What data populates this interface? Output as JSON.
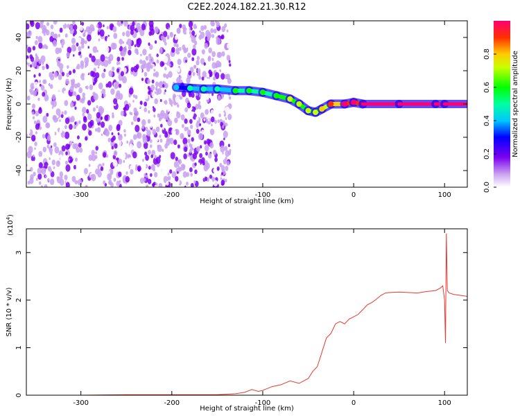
{
  "title": "C2E2.2024.182.21.30.R12",
  "spectrogram": {
    "type": "heatmap",
    "xlabel": "Height of straight line (km)",
    "ylabel": "Frequency (Hz)",
    "xlim": [
      -360,
      125
    ],
    "ylim": [
      -50,
      50
    ],
    "x_ticks": [
      -300,
      -200,
      -100,
      0,
      100
    ],
    "y_ticks": [
      -40,
      -20,
      0,
      20,
      40
    ],
    "colorbar": {
      "label": "Normalized spectral amplitude",
      "range": [
        0.0,
        1.0
      ],
      "ticks": [
        "0.0",
        "0.2",
        "0.4",
        "0.6",
        "0.8"
      ],
      "tick_values": [
        0.0,
        0.2,
        0.4,
        0.6,
        0.8
      ]
    },
    "signal_track": [
      {
        "x": -195,
        "y": 10,
        "amp": 0.35
      },
      {
        "x": -180,
        "y": 9.5,
        "amp": 0.4
      },
      {
        "x": -165,
        "y": 9,
        "amp": 0.45
      },
      {
        "x": -150,
        "y": 9,
        "amp": 0.45
      },
      {
        "x": -130,
        "y": 8,
        "amp": 0.5
      },
      {
        "x": -115,
        "y": 8,
        "amp": 0.55
      },
      {
        "x": -100,
        "y": 7,
        "amp": 0.55
      },
      {
        "x": -85,
        "y": 5,
        "amp": 0.6
      },
      {
        "x": -70,
        "y": 3,
        "amp": 0.65
      },
      {
        "x": -60,
        "y": 0,
        "amp": 0.65
      },
      {
        "x": -50,
        "y": -4,
        "amp": 0.7
      },
      {
        "x": -42,
        "y": -5,
        "amp": 0.7
      },
      {
        "x": -35,
        "y": -3,
        "amp": 0.75
      },
      {
        "x": -25,
        "y": 0,
        "amp": 0.85
      },
      {
        "x": -10,
        "y": 0,
        "amp": 0.9
      },
      {
        "x": 0,
        "y": 1,
        "amp": 0.9
      },
      {
        "x": 10,
        "y": 0,
        "amp": 1.0
      },
      {
        "x": 50,
        "y": 0,
        "amp": 1.0
      },
      {
        "x": 90,
        "y": 0,
        "amp": 1.0
      },
      {
        "x": 100,
        "y": 0,
        "amp": 1.0
      },
      {
        "x": 125,
        "y": 0,
        "amp": 1.0
      }
    ]
  },
  "snr": {
    "type": "line",
    "xlabel": "Height of straight line (km)",
    "ylabel": "SNR (10 * v/v)",
    "y_multiplier": "(x10",
    "y_multiplier_exp": "4",
    "y_multiplier_close": ")",
    "xlim": [
      -360,
      125
    ],
    "ylim": [
      0,
      3.5
    ],
    "x_ticks": [
      -300,
      -200,
      -100,
      0,
      100
    ],
    "y_ticks": [
      0,
      1,
      2,
      3
    ],
    "color": "#e8382e",
    "series_x": [
      -360,
      -300,
      -250,
      -200,
      -150,
      -130,
      -120,
      -112,
      -105,
      -100,
      -90,
      -80,
      -70,
      -60,
      -50,
      -45,
      -40,
      -35,
      -30,
      -25,
      -20,
      -15,
      -10,
      -5,
      0,
      5,
      10,
      15,
      20,
      25,
      30,
      35,
      40,
      50,
      60,
      70,
      80,
      90,
      95,
      98,
      100,
      101,
      102,
      103,
      105,
      110,
      125
    ],
    "series_y": [
      0.0,
      0.0,
      0.01,
      0.01,
      0.01,
      0.03,
      0.06,
      0.12,
      0.08,
      0.1,
      0.18,
      0.22,
      0.3,
      0.25,
      0.35,
      0.5,
      0.6,
      0.9,
      1.2,
      1.3,
      1.5,
      1.55,
      1.5,
      1.6,
      1.65,
      1.7,
      1.8,
      1.9,
      1.95,
      2.02,
      2.1,
      2.15,
      2.16,
      2.17,
      2.16,
      2.15,
      2.18,
      2.2,
      2.25,
      2.3,
      2.0,
      1.1,
      3.4,
      2.2,
      2.15,
      2.12,
      2.08
    ]
  }
}
